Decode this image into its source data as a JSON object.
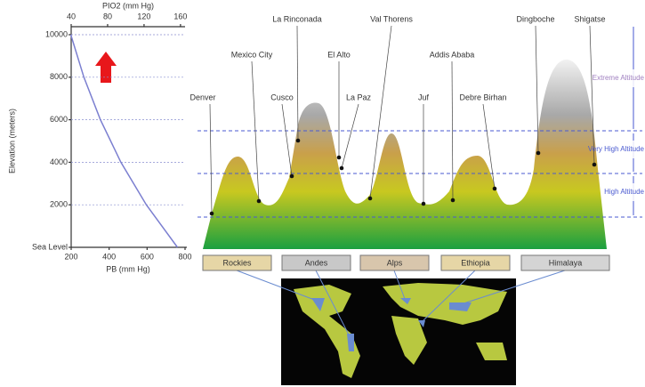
{
  "chart_data": {
    "type": "line",
    "x_label": "PB (mm Hg)",
    "x2_label": "PIO2 (mm Hg)",
    "y_label": "Elevation (meters)",
    "x": [
      760,
      596,
      462,
      354,
      267,
      198
    ],
    "series": [
      {
        "color": "#7b7fd0",
        "values": [
          0,
          2000,
          4000,
          6000,
          8000,
          10000
        ]
      }
    ],
    "xlim": [
      200,
      800
    ],
    "xticks": [
      200,
      400,
      600,
      800
    ],
    "x2lim": [
      40,
      165
    ],
    "x2ticks": [
      40,
      80,
      120,
      160
    ],
    "ylim": [
      0,
      10000
    ],
    "yticks": [
      {
        "value": 0,
        "label": "Sea Level"
      },
      2000,
      4000,
      6000,
      8000,
      10000
    ],
    "grid": true
  },
  "diagram": {
    "sites": [
      "Denver",
      "Mexico City",
      "Cusco",
      "La Rinconada",
      "El Alto",
      "La Paz",
      "Val Thorens",
      "Juf",
      "Addis Ababa",
      "Debre Birhan",
      "Dingboche",
      "Shigatse"
    ],
    "zones": [
      "Extreme Altitude",
      "Very High Altitude",
      "High Altitude"
    ],
    "ranges": [
      "Rockies",
      "Andes",
      "Alps",
      "Ethiopia",
      "Himalaya"
    ]
  }
}
